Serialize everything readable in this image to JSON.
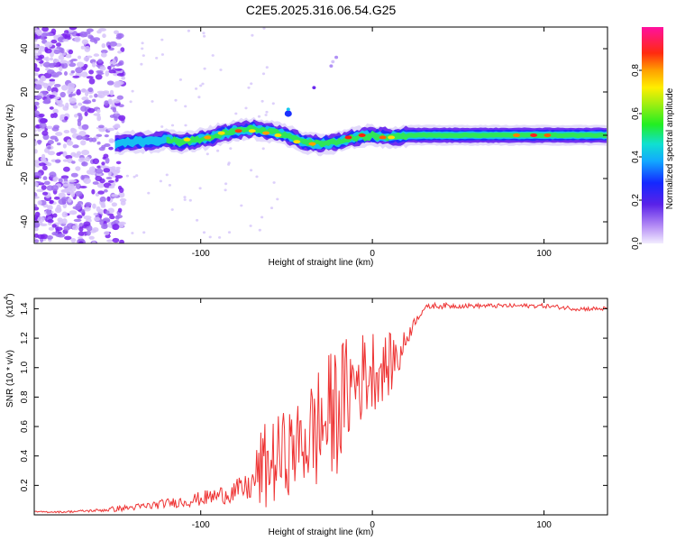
{
  "title": "C2E5.2025.316.06.54.G25",
  "spectrogram": {
    "type": "heatmap",
    "xlabel": "Height of straight line (km)",
    "ylabel": "Frequency (Hz)",
    "xlim": [
      -197,
      137
    ],
    "ylim": [
      -50,
      50
    ],
    "xticks": [
      -100,
      0,
      100
    ],
    "xtick_labels": [
      "-100",
      "0",
      "100"
    ],
    "yticks": [
      40,
      20,
      0,
      -20,
      -40
    ],
    "ytick_labels": [
      "40",
      "20",
      "0",
      "-20",
      "-40"
    ],
    "colorbar_label": "Normalized spectral amplitude",
    "colorbar_ticks": [
      0.0,
      0.2,
      0.4,
      0.6,
      0.8
    ],
    "colorbar_tick_labels": [
      "0.0",
      "0.2",
      "0.4",
      "0.6",
      "0.8"
    ],
    "ridge": {
      "x": [
        -150,
        -140,
        -130,
        -120,
        -110,
        -100,
        -90,
        -80,
        -70,
        -60,
        -50,
        -40,
        -30,
        -20,
        -10,
        0,
        10,
        20,
        40,
        60,
        80,
        100,
        120,
        137
      ],
      "freq": [
        -4,
        -3,
        -3,
        -2,
        -3,
        -2,
        0,
        2,
        3,
        2,
        0,
        -3,
        -4,
        -3,
        -1,
        0,
        -1,
        0,
        0,
        0,
        0,
        0,
        0,
        0
      ]
    },
    "colors": {
      "background": "#ffffff",
      "noise": "#8a3ff0"
    }
  },
  "snr": {
    "type": "line",
    "xlabel": "Height of straight line (km)",
    "ylabel": "SNR (10 * v/v)",
    "multiplier": "(x10",
    "multiplier_exp": "4",
    "xlim": [
      -197,
      137
    ],
    "ylim": [
      0,
      1.47
    ],
    "xticks": [
      -100,
      0,
      100
    ],
    "xtick_labels": [
      "-100",
      "0",
      "100"
    ],
    "yticks": [
      0.2,
      0.4,
      0.6,
      0.8,
      1.0,
      1.2,
      1.4
    ],
    "ytick_labels": [
      "0.2",
      "0.4",
      "0.6",
      "0.8",
      "1.0",
      "1.2",
      "1.4"
    ],
    "series": [
      {
        "name": "SNR",
        "color": "#ee3333",
        "x": [
          -197,
          -180,
          -160,
          -150,
          -140,
          -130,
          -120,
          -110,
          -100,
          -90,
          -80,
          -70,
          -65,
          -60,
          -55,
          -50,
          -45,
          -40,
          -35,
          -30,
          -25,
          -20,
          -15,
          -10,
          -5,
          0,
          5,
          10,
          15,
          20,
          25,
          30,
          35,
          40,
          60,
          80,
          100,
          120,
          137
        ],
        "base": [
          0.02,
          0.02,
          0.03,
          0.04,
          0.05,
          0.06,
          0.08,
          0.09,
          0.11,
          0.13,
          0.16,
          0.19,
          0.21,
          0.25,
          0.29,
          0.33,
          0.37,
          0.4,
          0.43,
          0.47,
          0.52,
          0.6,
          0.72,
          0.8,
          0.86,
          0.9,
          0.92,
          0.95,
          1.05,
          1.2,
          1.32,
          1.4,
          1.42,
          1.42,
          1.42,
          1.42,
          1.42,
          1.4,
          1.4
        ],
        "amp": [
          0.005,
          0.006,
          0.01,
          0.02,
          0.02,
          0.03,
          0.03,
          0.04,
          0.05,
          0.06,
          0.08,
          0.1,
          0.3,
          0.3,
          0.3,
          0.3,
          0.28,
          0.32,
          0.4,
          0.45,
          0.45,
          0.45,
          0.38,
          0.35,
          0.3,
          0.3,
          0.22,
          0.22,
          0.15,
          0.07,
          0.03,
          0.02,
          0.02,
          0.02,
          0.015,
          0.015,
          0.015,
          0.015,
          0.015
        ]
      }
    ]
  }
}
